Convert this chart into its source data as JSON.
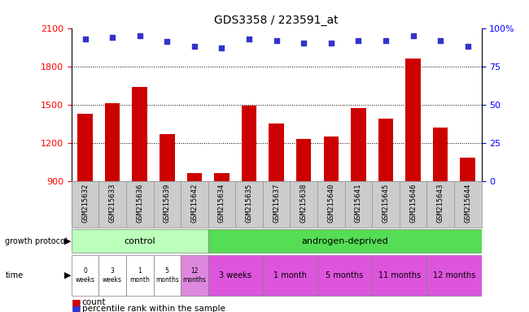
{
  "title": "GDS3358 / 223591_at",
  "samples": [
    "GSM215632",
    "GSM215633",
    "GSM215636",
    "GSM215639",
    "GSM215642",
    "GSM215634",
    "GSM215635",
    "GSM215637",
    "GSM215638",
    "GSM215640",
    "GSM215641",
    "GSM215645",
    "GSM215646",
    "GSM215643",
    "GSM215644"
  ],
  "counts": [
    1430,
    1510,
    1640,
    1270,
    960,
    960,
    1490,
    1350,
    1230,
    1250,
    1470,
    1390,
    1860,
    1320,
    1080
  ],
  "percentile": [
    93,
    94,
    95,
    91,
    88,
    87,
    93,
    92,
    90,
    90,
    92,
    92,
    95,
    92,
    88
  ],
  "ylim_left": [
    900,
    2100
  ],
  "ylim_right": [
    0,
    100
  ],
  "yticks_left": [
    900,
    1200,
    1500,
    1800,
    2100
  ],
  "yticks_right": [
    0,
    25,
    50,
    75,
    100
  ],
  "bar_color": "#cc0000",
  "dot_color": "#3333cc",
  "grid_color": "#000000",
  "protocol_control_color": "#bbffbb",
  "protocol_androgen_color": "#55dd55",
  "time_white": "#ffffff",
  "time_pink": "#ee88ee",
  "time_magenta": "#dd44dd",
  "label_bg": "#cccccc",
  "ax_bg": "#ffffff",
  "grid_dotted_color": "#333333"
}
